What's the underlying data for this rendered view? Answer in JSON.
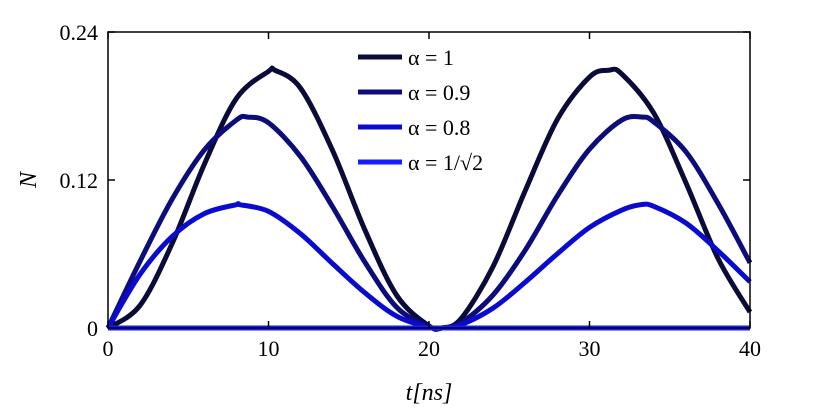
{
  "chart_data": {
    "type": "line",
    "xlabel": "t[ns]",
    "ylabel": "N",
    "xlim": [
      0,
      40
    ],
    "ylim": [
      0,
      0.24
    ],
    "xticks": [
      "0",
      "10",
      "20",
      "30",
      "40"
    ],
    "yticks": [
      "0",
      "0.12",
      "0.24"
    ],
    "grid": false,
    "legend_position": "top-center",
    "series": [
      {
        "name": "α = 1",
        "color": "#0b0b3a",
        "x": [
          0,
          2,
          4,
          6,
          8,
          10,
          10.4,
          12,
          14,
          16,
          18,
          20,
          20.8,
          22,
          24,
          26,
          28,
          30,
          31.2,
          32,
          34,
          36,
          38,
          40
        ],
        "y": [
          0,
          0.0184,
          0.0686,
          0.1327,
          0.1861,
          0.2081,
          0.209,
          0.1944,
          0.1437,
          0.0797,
          0.0262,
          0.0017,
          0,
          0.0076,
          0.0501,
          0.1115,
          0.1692,
          0.2035,
          0.209,
          0.2061,
          0.1743,
          0.118,
          0.0566,
          0.0129
        ]
      },
      {
        "name": "α = 0.9",
        "color": "#0c0c7a",
        "x": [
          0,
          2,
          4,
          6,
          8,
          8.7,
          10,
          12,
          14,
          16,
          18,
          20,
          20.8,
          22,
          24,
          26,
          28,
          30,
          32,
          33.3,
          34,
          36,
          38,
          40
        ],
        "y": [
          0,
          0.0542,
          0.1046,
          0.1444,
          0.1686,
          0.171,
          0.1664,
          0.1389,
          0.0981,
          0.0535,
          0.0166,
          0.001,
          0,
          0.0042,
          0.0269,
          0.0632,
          0.1072,
          0.145,
          0.1685,
          0.171,
          0.1671,
          0.143,
          0.1011,
          0.0529
        ]
      },
      {
        "name": "α = 0.8",
        "color": "#0b0bd0",
        "x": [
          0,
          2,
          4,
          6,
          8,
          8.2,
          10,
          12,
          14,
          16,
          18,
          20,
          20.8,
          22,
          24,
          26,
          28,
          30,
          32,
          33.2,
          34,
          36,
          38,
          40
        ],
        "y": [
          0,
          0.0436,
          0.0742,
          0.0927,
          0.1,
          0.1,
          0.0946,
          0.0764,
          0.0521,
          0.0286,
          0.0095,
          0.0006,
          0,
          0.0027,
          0.0162,
          0.0372,
          0.0602,
          0.0815,
          0.0955,
          0.1,
          0.0987,
          0.0852,
          0.0627,
          0.0374
        ]
      },
      {
        "name": "α = 1/√2",
        "color": "#1a1aff",
        "x": [
          0,
          40
        ],
        "y": [
          0,
          0
        ]
      }
    ]
  }
}
